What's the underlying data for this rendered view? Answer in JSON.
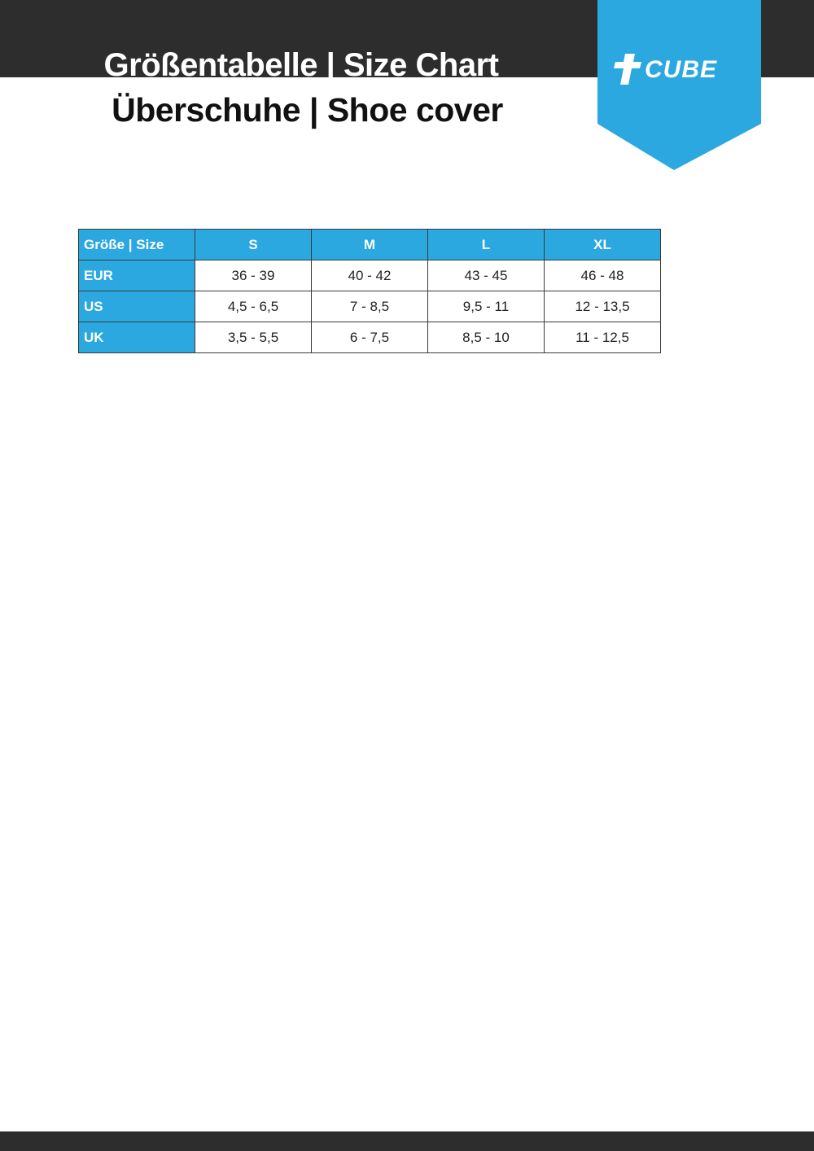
{
  "header": {
    "title_line1": "Größentabelle | Size Chart",
    "title_line2": "Überschuhe | Shoe cover",
    "logo_text": "CUBE"
  },
  "colors": {
    "accent": "#2ba8e0",
    "dark_band": "#2d2d2d"
  },
  "table": {
    "corner": "Größe | Size",
    "columns": [
      "S",
      "M",
      "L",
      "XL"
    ],
    "rows": [
      {
        "label": "EUR",
        "values": [
          "36 - 39",
          "40 - 42",
          "43 - 45",
          "46 - 48"
        ]
      },
      {
        "label": "US",
        "values": [
          "4,5 - 6,5",
          "7 - 8,5",
          "9,5 - 11",
          "12 - 13,5"
        ]
      },
      {
        "label": "UK",
        "values": [
          "3,5 - 5,5",
          "6 - 7,5",
          "8,5 - 10",
          "11 - 12,5"
        ]
      }
    ]
  }
}
